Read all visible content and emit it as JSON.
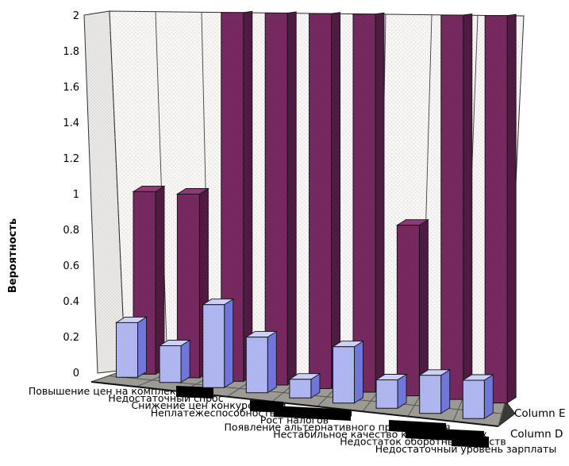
{
  "window": {
    "background": "#ffffff"
  },
  "chart_data": {
    "type": "bar",
    "projection": "3d",
    "title": "",
    "ylabel": "Вероятность",
    "ylim": [
      0,
      2
    ],
    "ytick_step": 0.2,
    "ytick_labels": [
      "0",
      "0.2",
      "0.4",
      "0.6",
      "0.8",
      "1",
      "1.2",
      "1.4",
      "1.6",
      "1.8",
      "2"
    ],
    "grid": "vertical-category-separators-only",
    "categories": [
      "Повышение цен на комплектующие",
      "Недостаточный спрос",
      "Снижение цен конкурентами",
      "Неплатежеспособность потребителей",
      "Рост налогов",
      "Появление альтернативного предложения",
      "Нестабильное качество комплектующих",
      "Недостаток оборотных средств",
      "Недостаточный уровень зарплаты"
    ],
    "series": [
      {
        "name": "Column D",
        "row": "front",
        "color": "#a9b1ee",
        "color_dark": "#7077d8",
        "color_light": "#cdd1f7",
        "dot_color": "#c2c8f4",
        "values": [
          0.3,
          0.2,
          0.45,
          0.3,
          0.1,
          0.3,
          0.15,
          0.2,
          0.2
        ]
      },
      {
        "name": "Column E",
        "row": "back",
        "color": "#7b2c64",
        "color_dark": "#4f1b40",
        "color_light": "#8f3a78",
        "dot_color": "#5a1e48",
        "values": [
          1,
          1,
          2,
          2,
          2,
          2,
          0.9,
          2,
          2
        ],
        "clipped_at_axis_max": [
          false,
          false,
          true,
          true,
          true,
          true,
          false,
          true,
          true
        ]
      }
    ],
    "legend": {
      "entries": [
        "Column E",
        "Column D"
      ],
      "position": "bottom-right"
    },
    "wall_color": "#f7f6f4",
    "floor_color": "#9d9c97",
    "note": "Column E bars with value 2 are clipped at the axis maximum (2)"
  }
}
